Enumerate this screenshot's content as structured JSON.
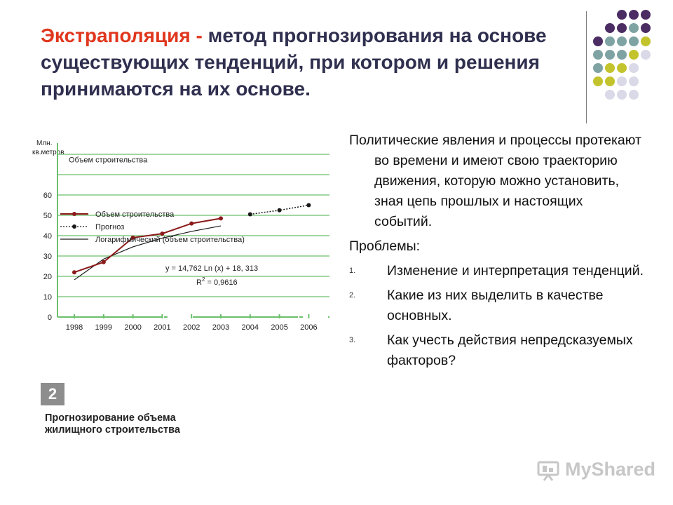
{
  "title": {
    "accent": "Экстраполяция -",
    "rest": " метод прогнозирования на основе существующих тенденций, при котором и решения принимаются на их основе."
  },
  "decoration_colors": {
    "purple": "#4b2d63",
    "teal": "#7fa3a3",
    "yellow": "#c3c42d",
    "lavender": "#d9d9e8"
  },
  "body": {
    "intro": "Политические явления и процессы протекают во времени и имеют свою траекторию движения, которую можно установить, зная цепь прошлых и настоящих событий.",
    "problems_label": "Проблемы:",
    "items": [
      {
        "num": "1.",
        "text": "Изменение и интерпретация тенденций."
      },
      {
        "num": "2.",
        "text": "Какие из них выделить в качестве основных."
      },
      {
        "num": "3.",
        "text": "Как учесть действия непредсказуемых факторов?"
      }
    ]
  },
  "figure": {
    "badge": "2",
    "caption_line1": "Прогнозирование объема",
    "caption_line2": "жилищного строительства"
  },
  "watermark": "MyShared",
  "chart_data": {
    "type": "line",
    "ylabel_line1": "Млн.",
    "ylabel_line2": "кв.метров",
    "inner_title": "Объем строительства",
    "categories": [
      "1998",
      "1999",
      "2000",
      "2001",
      "2002",
      "2003",
      "2004",
      "2005",
      "2006"
    ],
    "yticks": [
      0,
      10,
      20,
      30,
      40,
      50,
      60
    ],
    "ylim": [
      0,
      80
    ],
    "equation": "y = 14,762 Ln (x) + 18, 313",
    "r2_prefix": "R",
    "r2_sup": "2",
    "r2_value": " = 0,9616",
    "series": [
      {
        "name": "Объем строительства",
        "color": "#8b1a1a",
        "x": [
          "1998",
          "1999",
          "2000",
          "2001",
          "2002",
          "2003"
        ],
        "values": [
          22,
          27,
          39,
          41,
          46,
          48.5
        ]
      },
      {
        "name": "Прогноз",
        "color": "#1a1a1a",
        "x": [
          "2004",
          "2005",
          "2006"
        ],
        "values": [
          50.5,
          52.5,
          55
        ]
      },
      {
        "name": "Логарифмический (объем строительства)",
        "color": "#1a1a1a",
        "x": [
          "1998",
          "1999",
          "2000",
          "2001",
          "2002",
          "2003"
        ],
        "values": [
          18.3,
          28.5,
          34.5,
          38.8,
          42.1,
          44.8
        ]
      }
    ],
    "grid_color": "#6cbf6c"
  }
}
